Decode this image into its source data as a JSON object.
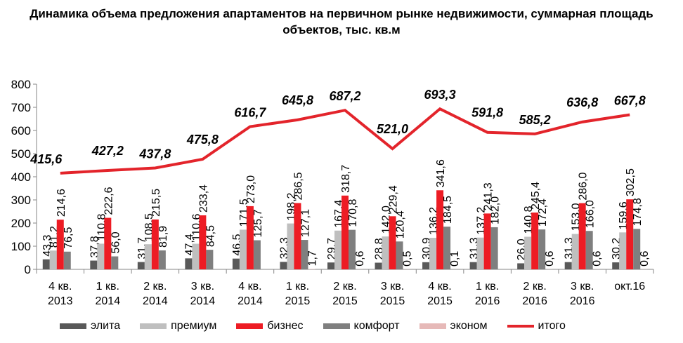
{
  "chart_data": {
    "type": "bar",
    "title": "Динамика объема предложения апартаментов на  первичном рынке недвижимости, суммарная площадь объектов, тыс. кв.м",
    "categories": [
      "4 кв. 2013",
      "1 кв. 2014",
      "2 кв. 2014",
      "3 кв. 2014",
      "4 кв. 2014",
      "1 кв. 2015",
      "2 кв. 2015",
      "3 кв. 2015",
      "4 кв. 2015",
      "1 кв. 2016",
      "2 кв. 2016",
      "3 кв. 2016",
      "окт.16"
    ],
    "ylim": [
      0,
      800
    ],
    "yticks": [
      0,
      100,
      200,
      300,
      400,
      500,
      600,
      700,
      800
    ],
    "legend_position": "bottom",
    "grid": false,
    "series": [
      {
        "name": "элита",
        "type": "bar",
        "color": "#595959",
        "values": [
          43.3,
          37.8,
          31.7,
          47.4,
          46.5,
          32.3,
          29.7,
          28.8,
          30.9,
          31.3,
          26.0,
          31.3,
          30.2
        ]
      },
      {
        "name": "премиум",
        "type": "bar",
        "color": "#bfbfbf",
        "values": [
          81.2,
          110.8,
          108.5,
          110.6,
          171.5,
          198.2,
          167.4,
          142.0,
          136.2,
          137.2,
          140.8,
          153.0,
          159.6
        ]
      },
      {
        "name": "бизнес",
        "type": "bar",
        "color": "#ed1c24",
        "values": [
          214.6,
          222.6,
          215.5,
          233.4,
          273.0,
          286.5,
          318.7,
          229.4,
          341.6,
          241.3,
          245.4,
          286.0,
          302.5
        ]
      },
      {
        "name": "комфорт",
        "type": "bar",
        "color": "#7f7f7f",
        "values": [
          76.5,
          56.0,
          81.9,
          84.5,
          125.7,
          127.1,
          170.8,
          120.4,
          184.5,
          182.0,
          172.4,
          166.0,
          174.8
        ]
      },
      {
        "name": "эконом",
        "type": "bar",
        "color": "#e6b9b8",
        "values": [
          null,
          null,
          null,
          null,
          null,
          1.7,
          0.6,
          0.5,
          0.1,
          null,
          0.6,
          0.6,
          0.6
        ]
      },
      {
        "name": "итого",
        "type": "line",
        "color": "#e3242b",
        "values": [
          415.6,
          427.2,
          437.8,
          475.8,
          616.7,
          645.8,
          687.2,
          521.0,
          693.3,
          591.8,
          585.2,
          636.8,
          667.8
        ]
      }
    ]
  }
}
